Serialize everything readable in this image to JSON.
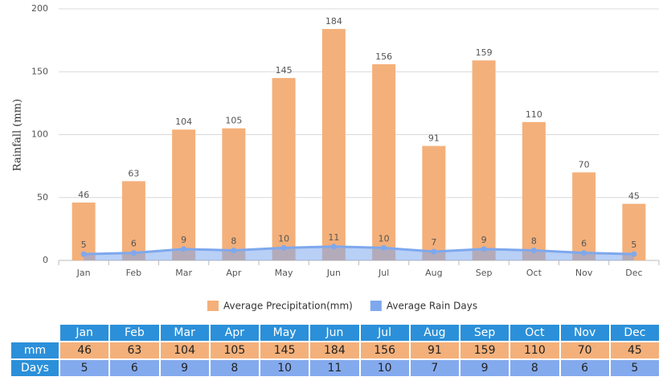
{
  "chart_data": {
    "type": "bar",
    "y_label": "Rainfall (mm)",
    "categories": [
      "Jan",
      "Feb",
      "Mar",
      "Apr",
      "May",
      "Jun",
      "Jul",
      "Aug",
      "Sep",
      "Oct",
      "Nov",
      "Dec"
    ],
    "series": [
      {
        "name": "Average Precipitation(mm)",
        "type": "bar",
        "color": "#f4b07a",
        "values": [
          46,
          63,
          104,
          105,
          145,
          184,
          156,
          91,
          159,
          110,
          70,
          45
        ]
      },
      {
        "name": "Average Rain Days",
        "type": "line",
        "color": "#7ea8ee",
        "values": [
          5,
          6,
          9,
          8,
          10,
          11,
          10,
          7,
          9,
          8,
          6,
          5
        ]
      }
    ],
    "ylim": [
      0,
      200
    ],
    "yticks": [
      0,
      50,
      100,
      150,
      200
    ],
    "grid": true,
    "legend": "bottom"
  },
  "table": {
    "row_headers": [
      "mm",
      "Days"
    ]
  }
}
